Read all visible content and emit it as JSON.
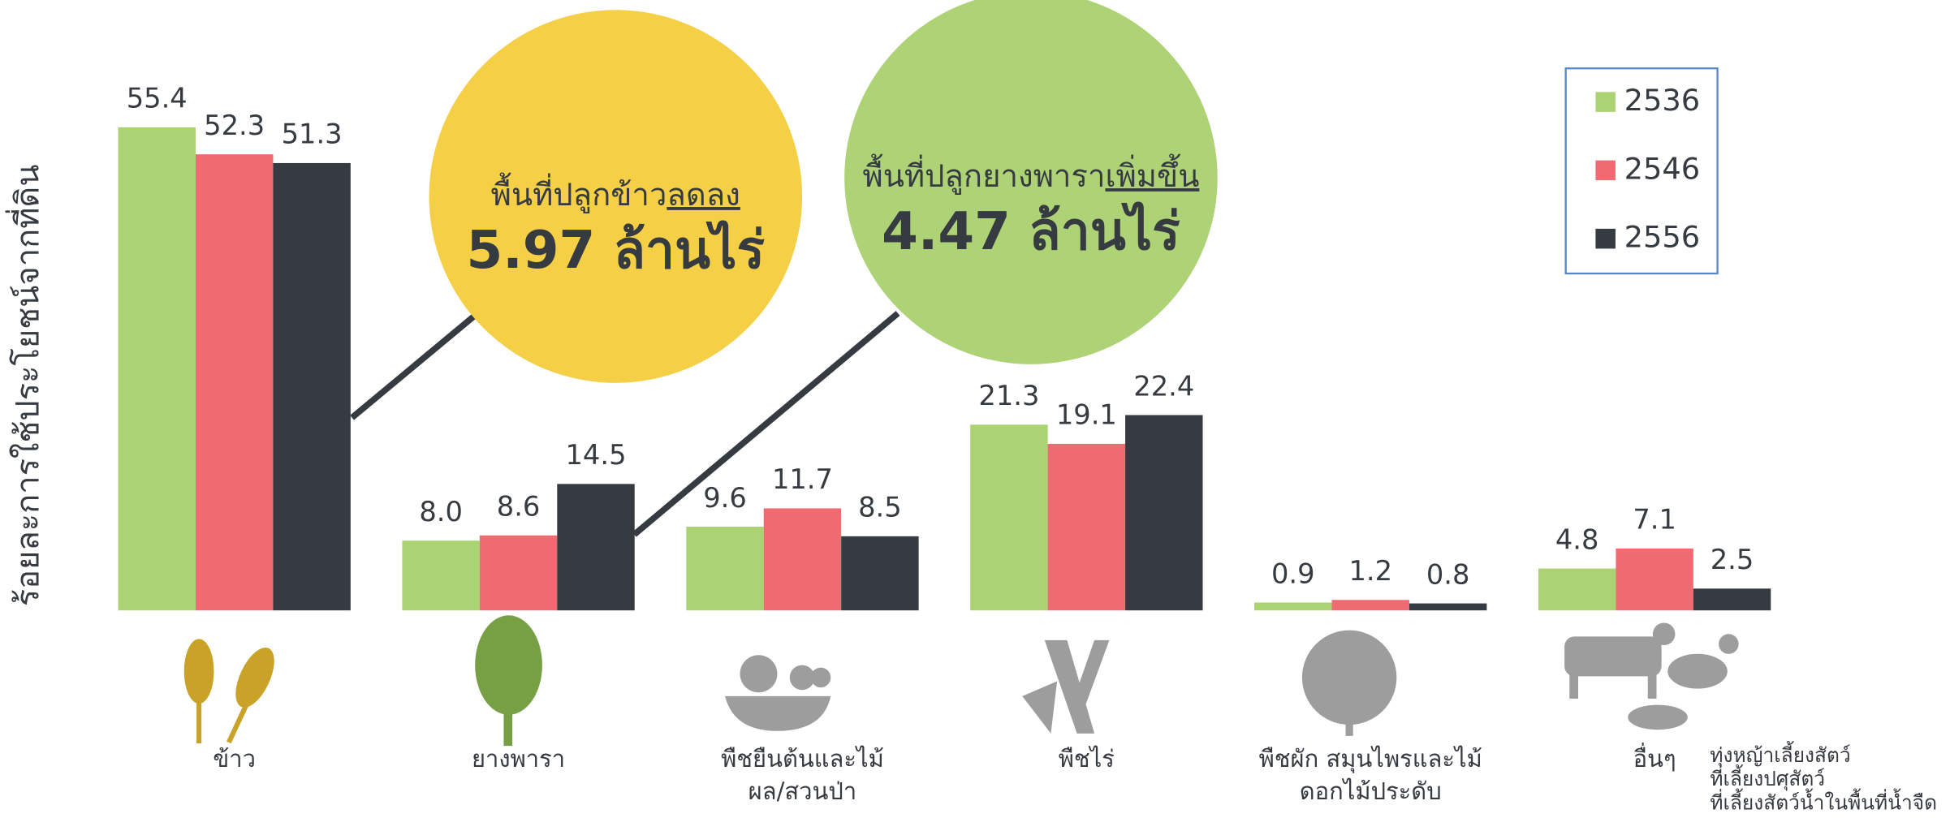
{
  "chart_data": {
    "type": "bar",
    "y_label": "ร้อยละการใช้ประโยชน์จากที่ดิน",
    "categories": [
      "ข้าว",
      "ยางพารา",
      "พืชยืนต้นและไม้\nผล/สวนป่า",
      "พืชไร่",
      "พืชผัก สมุนไพรและไม้\nดอกไม้ประดับ",
      "อื่นๆ"
    ],
    "category_note": "ทุ่งหญ้าเลี้ยงสัตว์\nที่เลี้ยงปศุสัตว์\nที่เลี้ยงสัตว์น้ำในพื้นที่น้ำจืด",
    "series": [
      {
        "name": "2536",
        "color": "#acd373",
        "values": [
          55.4,
          8.0,
          9.6,
          21.3,
          0.9,
          4.8
        ],
        "value_labels": [
          "55.4",
          "8.0",
          "9.6",
          "21.3",
          "0.9",
          "4.8"
        ]
      },
      {
        "name": "2546",
        "color": "#f06a72",
        "values": [
          52.3,
          8.6,
          11.7,
          19.1,
          1.2,
          7.1
        ],
        "value_labels": [
          "52.3",
          "8.6",
          "11.7",
          "19.1",
          "1.2",
          "7.1"
        ]
      },
      {
        "name": "2556",
        "color": "#363a41",
        "values": [
          51.3,
          14.5,
          8.5,
          22.4,
          0.8,
          2.5
        ],
        "value_labels": [
          "51.3",
          "14.5",
          "8.5",
          "22.4",
          "0.8",
          "2.5"
        ]
      }
    ],
    "ylim": [
      0,
      70
    ],
    "legend": "upper right",
    "annotations": [
      {
        "text": "พื้นที่ปลูกข้าว",
        "emphasis": "ลดลง",
        "value": "5.97 ล้านไร่",
        "color": "#f5cf45",
        "category": 0
      },
      {
        "text": "พื้นที่ปลูกยางพารา",
        "emphasis": "เพิ่มขึ้น",
        "value": "4.47 ล้านไร่",
        "color": "#aed376",
        "category": 1
      }
    ]
  }
}
